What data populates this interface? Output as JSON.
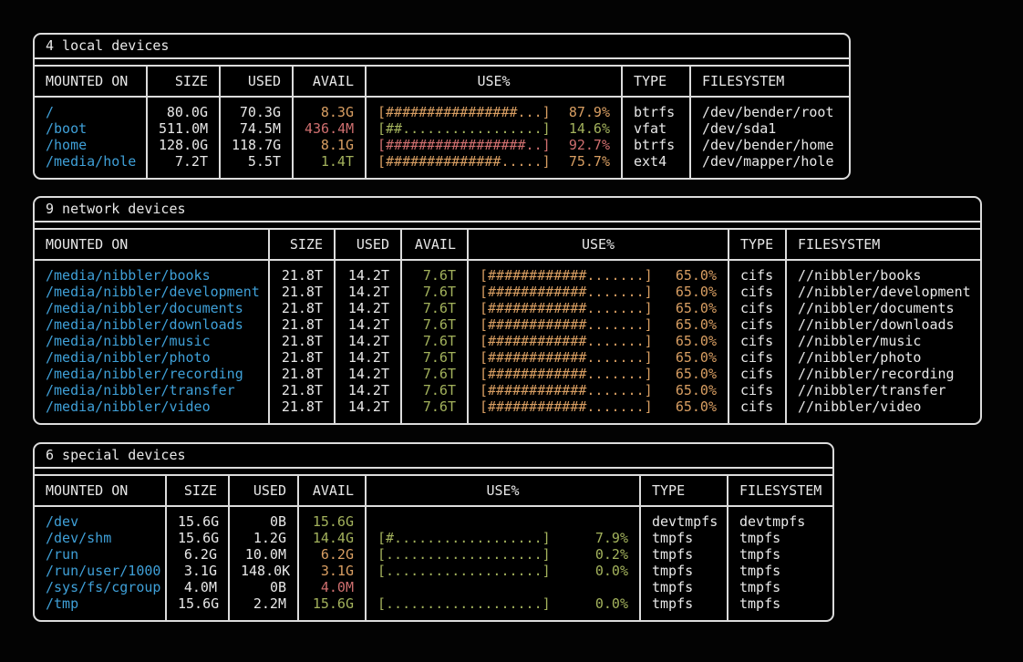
{
  "terminal": {
    "app": "duf disk usage output",
    "background": "#030303",
    "border_color": "#dcdcdc",
    "colors": {
      "blue": "#3fa0d8",
      "green": "#a3b25c",
      "orange": "#d89e62",
      "red": "#cf6f6f",
      "white": "#e8e8e8"
    }
  },
  "tables": [
    {
      "title": "4 local devices",
      "columns": [
        "MOUNTED ON",
        "SIZE",
        "USED",
        "AVAIL",
        "USE%",
        "TYPE",
        "FILESYSTEM"
      ],
      "rows": [
        {
          "mounted_on": "/",
          "size": "80.0G",
          "used": "70.3G",
          "avail": "8.3G",
          "avail_color": "orange",
          "bar": "[################...]",
          "pct": "87.9%",
          "use_color": "orange",
          "type": "btrfs",
          "filesystem": "/dev/bender/root"
        },
        {
          "mounted_on": "/boot",
          "size": "511.0M",
          "used": "74.5M",
          "avail": "436.4M",
          "avail_color": "red",
          "bar": "[##.................]",
          "pct": "14.6%",
          "use_color": "green",
          "type": "vfat",
          "filesystem": "/dev/sda1"
        },
        {
          "mounted_on": "/home",
          "size": "128.0G",
          "used": "118.7G",
          "avail": "8.1G",
          "avail_color": "orange",
          "bar": "[#################..]",
          "pct": "92.7%",
          "use_color": "red",
          "type": "btrfs",
          "filesystem": "/dev/bender/home"
        },
        {
          "mounted_on": "/media/hole",
          "size": "7.2T",
          "used": "5.5T",
          "avail": "1.4T",
          "avail_color": "green",
          "bar": "[##############.....]",
          "pct": "75.7%",
          "use_color": "orange",
          "type": "ext4",
          "filesystem": "/dev/mapper/hole"
        }
      ]
    },
    {
      "title": "9 network devices",
      "columns": [
        "MOUNTED ON",
        "SIZE",
        "USED",
        "AVAIL",
        "USE%",
        "TYPE",
        "FILESYSTEM"
      ],
      "rows": [
        {
          "mounted_on": "/media/nibbler/books",
          "size": "21.8T",
          "used": "14.2T",
          "avail": "7.6T",
          "avail_color": "green",
          "bar": "[############.......]",
          "pct": "65.0%",
          "use_color": "orange",
          "type": "cifs",
          "filesystem": "//nibbler/books"
        },
        {
          "mounted_on": "/media/nibbler/development",
          "size": "21.8T",
          "used": "14.2T",
          "avail": "7.6T",
          "avail_color": "green",
          "bar": "[############.......]",
          "pct": "65.0%",
          "use_color": "orange",
          "type": "cifs",
          "filesystem": "//nibbler/development"
        },
        {
          "mounted_on": "/media/nibbler/documents",
          "size": "21.8T",
          "used": "14.2T",
          "avail": "7.6T",
          "avail_color": "green",
          "bar": "[############.......]",
          "pct": "65.0%",
          "use_color": "orange",
          "type": "cifs",
          "filesystem": "//nibbler/documents"
        },
        {
          "mounted_on": "/media/nibbler/downloads",
          "size": "21.8T",
          "used": "14.2T",
          "avail": "7.6T",
          "avail_color": "green",
          "bar": "[############.......]",
          "pct": "65.0%",
          "use_color": "orange",
          "type": "cifs",
          "filesystem": "//nibbler/downloads"
        },
        {
          "mounted_on": "/media/nibbler/music",
          "size": "21.8T",
          "used": "14.2T",
          "avail": "7.6T",
          "avail_color": "green",
          "bar": "[############.......]",
          "pct": "65.0%",
          "use_color": "orange",
          "type": "cifs",
          "filesystem": "//nibbler/music"
        },
        {
          "mounted_on": "/media/nibbler/photo",
          "size": "21.8T",
          "used": "14.2T",
          "avail": "7.6T",
          "avail_color": "green",
          "bar": "[############.......]",
          "pct": "65.0%",
          "use_color": "orange",
          "type": "cifs",
          "filesystem": "//nibbler/photo"
        },
        {
          "mounted_on": "/media/nibbler/recording",
          "size": "21.8T",
          "used": "14.2T",
          "avail": "7.6T",
          "avail_color": "green",
          "bar": "[############.......]",
          "pct": "65.0%",
          "use_color": "orange",
          "type": "cifs",
          "filesystem": "//nibbler/recording"
        },
        {
          "mounted_on": "/media/nibbler/transfer",
          "size": "21.8T",
          "used": "14.2T",
          "avail": "7.6T",
          "avail_color": "green",
          "bar": "[############.......]",
          "pct": "65.0%",
          "use_color": "orange",
          "type": "cifs",
          "filesystem": "//nibbler/transfer"
        },
        {
          "mounted_on": "/media/nibbler/video",
          "size": "21.8T",
          "used": "14.2T",
          "avail": "7.6T",
          "avail_color": "green",
          "bar": "[############.......]",
          "pct": "65.0%",
          "use_color": "orange",
          "type": "cifs",
          "filesystem": "//nibbler/video"
        }
      ]
    },
    {
      "title": "6 special devices",
      "columns": [
        "MOUNTED ON",
        "SIZE",
        "USED",
        "AVAIL",
        "USE%",
        "TYPE",
        "FILESYSTEM"
      ],
      "rows": [
        {
          "mounted_on": "/dev",
          "size": "15.6G",
          "used": "0B",
          "avail": "15.6G",
          "avail_color": "green",
          "bar": "",
          "pct": "",
          "use_color": "green",
          "type": "devtmpfs",
          "filesystem": "devtmpfs"
        },
        {
          "mounted_on": "/dev/shm",
          "size": "15.6G",
          "used": "1.2G",
          "avail": "14.4G",
          "avail_color": "green",
          "bar": "[#..................]",
          "pct": "7.9%",
          "use_color": "green",
          "type": "tmpfs",
          "filesystem": "tmpfs"
        },
        {
          "mounted_on": "/run",
          "size": "6.2G",
          "used": "10.0M",
          "avail": "6.2G",
          "avail_color": "orange",
          "bar": "[...................]",
          "pct": "0.2%",
          "use_color": "green",
          "type": "tmpfs",
          "filesystem": "tmpfs"
        },
        {
          "mounted_on": "/run/user/1000",
          "size": "3.1G",
          "used": "148.0K",
          "avail": "3.1G",
          "avail_color": "orange",
          "bar": "[...................]",
          "pct": "0.0%",
          "use_color": "green",
          "type": "tmpfs",
          "filesystem": "tmpfs"
        },
        {
          "mounted_on": "/sys/fs/cgroup",
          "size": "4.0M",
          "used": "0B",
          "avail": "4.0M",
          "avail_color": "red",
          "bar": "",
          "pct": "",
          "use_color": "green",
          "type": "tmpfs",
          "filesystem": "tmpfs"
        },
        {
          "mounted_on": "/tmp",
          "size": "15.6G",
          "used": "2.2M",
          "avail": "15.6G",
          "avail_color": "green",
          "bar": "[...................]",
          "pct": "0.0%",
          "use_color": "green",
          "type": "tmpfs",
          "filesystem": "tmpfs"
        }
      ]
    }
  ]
}
